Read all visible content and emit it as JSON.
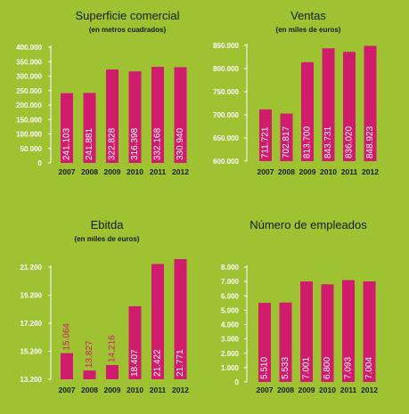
{
  "colors": {
    "background": "#9ec232",
    "bar": "#d01c6c",
    "axis": "#ffffff",
    "label_inside": "#ffffff",
    "label_outside": "#d01c6c"
  },
  "chart_data": [
    {
      "type": "bar",
      "title": "Superficie comercial",
      "subtitle": "(en metros cuadrados)",
      "categories": [
        "2007",
        "2008",
        "2009",
        "2010",
        "2011",
        "2012"
      ],
      "values": [
        241103,
        241881,
        322828,
        316398,
        332168,
        330940
      ],
      "value_labels": [
        "241.103",
        "241.881",
        "322.828",
        "316.398",
        "332.168",
        "330.940"
      ],
      "yticks": [
        "400.000",
        "350.000",
        "300.000",
        "250.000",
        "200.000",
        "150.000",
        "100.000",
        "50.000",
        "0"
      ],
      "ytick_values": [
        400000,
        350000,
        300000,
        250000,
        200000,
        150000,
        100000,
        50000,
        0
      ],
      "ylim": [
        0,
        400000
      ]
    },
    {
      "type": "bar",
      "title": "Ventas",
      "subtitle": "(en miles de euros)",
      "categories": [
        "2007",
        "2008",
        "2009",
        "2010",
        "2011",
        "2012"
      ],
      "values": [
        711721,
        702817,
        813700,
        843731,
        836020,
        848923
      ],
      "value_labels": [
        "711.721",
        "702.817",
        "813.700",
        "843.731",
        "836.020",
        "848.923"
      ],
      "yticks": [
        "850.000",
        "800.000",
        "750.000",
        "700.000",
        "650.000",
        "600.000"
      ],
      "ytick_values": [
        850000,
        800000,
        750000,
        700000,
        650000,
        600000
      ],
      "ylim": [
        600000,
        850000
      ]
    },
    {
      "type": "bar",
      "title": "Ebitda",
      "subtitle": "(en miles de euros)",
      "categories": [
        "2007",
        "2008",
        "2009",
        "2010",
        "2011",
        "2012"
      ],
      "values": [
        15064,
        13827,
        14216,
        18407,
        21422,
        21771
      ],
      "value_labels": [
        "15.064",
        "13.827",
        "14.216",
        "18.407",
        "21.422",
        "21.771"
      ],
      "yticks": [
        "21.200",
        "19.200",
        "17.200",
        "15.200",
        "13.200"
      ],
      "ytick_values": [
        21200,
        19200,
        17200,
        15200,
        13200
      ],
      "ylim": [
        13200,
        21200
      ]
    },
    {
      "type": "bar",
      "title": "Número de empleados",
      "subtitle": "",
      "categories": [
        "2007",
        "2008",
        "2009",
        "2010",
        "2011",
        "2012"
      ],
      "values": [
        5510,
        5533,
        7001,
        6800,
        7093,
        7004
      ],
      "value_labels": [
        "5.510",
        "5.533",
        "7.001",
        "6.800",
        "7.093",
        "7.004"
      ],
      "yticks": [
        "8.000",
        "7.000",
        "6.000",
        "5.000",
        "4.000",
        "3.000",
        "2.000",
        "1.000",
        "0"
      ],
      "ytick_values": [
        8000,
        7000,
        6000,
        5000,
        4000,
        3000,
        2000,
        1000,
        0
      ],
      "ylim": [
        0,
        8000
      ]
    }
  ]
}
